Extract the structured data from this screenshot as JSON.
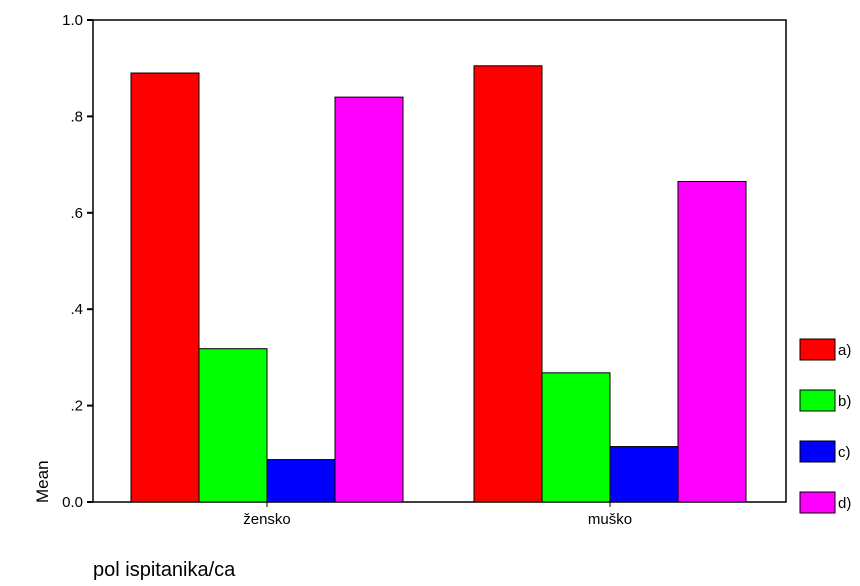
{
  "chart_data": {
    "type": "bar",
    "categories": [
      "žensko",
      "muško"
    ],
    "series": [
      {
        "name": "a)",
        "color": "#ff0000",
        "values": [
          0.89,
          0.905
        ]
      },
      {
        "name": "b)",
        "color": "#00ff00",
        "values": [
          0.318,
          0.268
        ]
      },
      {
        "name": "c)",
        "color": "#0000ff",
        "values": [
          0.088,
          0.115
        ]
      },
      {
        "name": "d)",
        "color": "#ff00ff",
        "values": [
          0.84,
          0.665
        ]
      }
    ],
    "title": "",
    "xlabel": "pol ispitanika/ca",
    "ylabel": "Mean",
    "ylim": [
      0,
      1.0
    ],
    "yticks": [
      0.0,
      0.2,
      0.4,
      0.6,
      0.8,
      1.0
    ],
    "ytick_labels": [
      "0.0",
      ".2",
      ".4",
      ".6",
      ".8",
      "1.0"
    ],
    "grid": false,
    "legend_position": "right"
  }
}
